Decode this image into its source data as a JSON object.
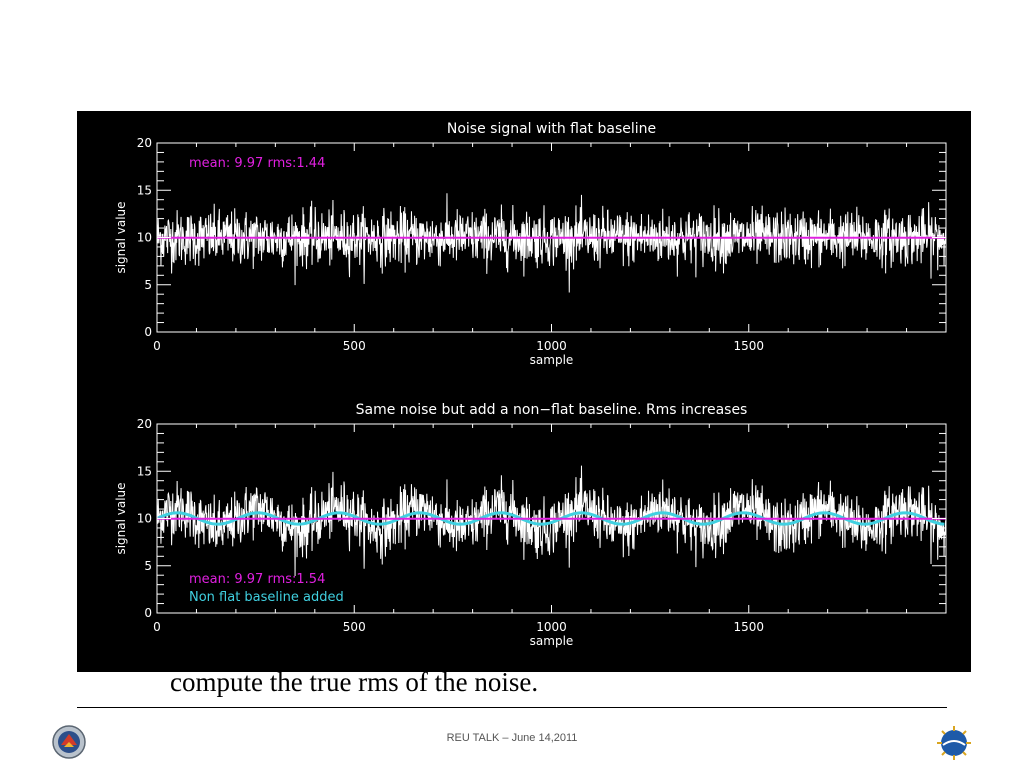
{
  "chart_data": [
    {
      "type": "line",
      "title": "Noise signal with flat baseline",
      "xlabel": "sample",
      "ylabel": "signal value",
      "xlim": [
        0,
        2000
      ],
      "ylim": [
        0,
        20
      ],
      "x_ticks": [
        "0",
        "500",
        "1000",
        "1500"
      ],
      "y_ticks": [
        "0",
        "5",
        "10",
        "15",
        "20"
      ],
      "annotations": [
        "mean: 9.97 rms:1.44"
      ],
      "series": [
        {
          "kind": "noise",
          "color": "#ffffff",
          "mean": 9.97,
          "rms": 1.44
        },
        {
          "kind": "mean-line",
          "color": "#e020e0",
          "value": 9.97
        }
      ]
    },
    {
      "type": "line",
      "title": "Same noise but add a  non−flat baseline. Rms increases",
      "xlabel": "sample",
      "ylabel": "signal value",
      "xlim": [
        0,
        2000
      ],
      "ylim": [
        0,
        20
      ],
      "x_ticks": [
        "0",
        "500",
        "1000",
        "1500"
      ],
      "y_ticks": [
        "0",
        "5",
        "10",
        "15",
        "20"
      ],
      "annotations": [
        "mean: 9.97 rms:1.54",
        "Non flat baseline added"
      ],
      "series": [
        {
          "kind": "noise",
          "color": "#ffffff",
          "mean": 9.97,
          "rms": 1.54
        },
        {
          "kind": "mean-line",
          "color": "#e020e0",
          "value": 9.97
        },
        {
          "kind": "baseline",
          "color": "#40d0e0",
          "center": 10,
          "amplitude": 0.6,
          "period": 205
        }
      ]
    }
  ],
  "caption": "compute the true rms of the noise.",
  "footer": "REU TALK – June 14,2011",
  "colors": {
    "annotation_magenta": "#e020e0",
    "annotation_cyan": "#40d0e0"
  },
  "logos": {
    "left": "university-seal-icon",
    "right": "nsf-logo-icon"
  }
}
